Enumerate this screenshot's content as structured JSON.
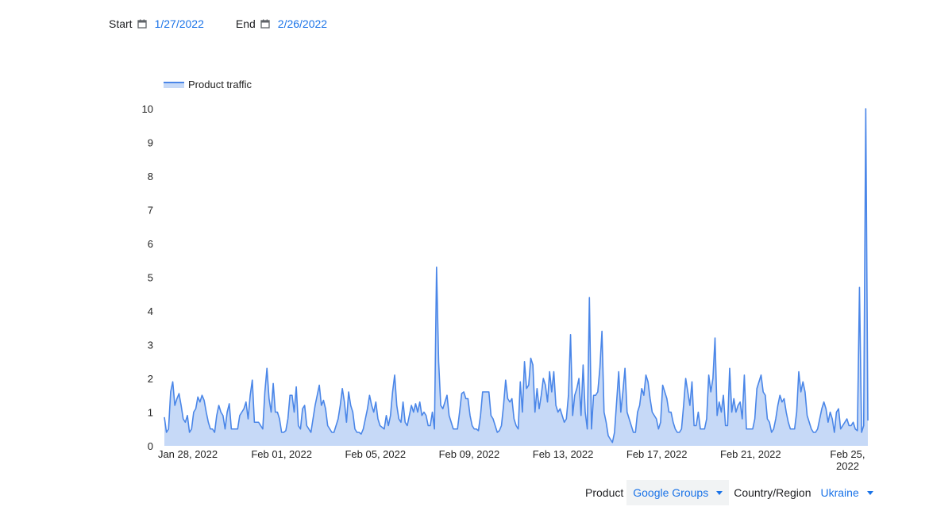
{
  "filters": {
    "start_label": "Start",
    "start_date": "1/27/2022",
    "end_label": "End",
    "end_date": "2/26/2022",
    "calendar_icon": "calendar-icon"
  },
  "controls": {
    "product_label": "Product",
    "product_value": "Google Groups",
    "country_label": "Country/Region",
    "country_value": "Ukraine",
    "dropdown_icon": "triangle-down-icon"
  },
  "colors": {
    "line": "#4a86e8",
    "fill": "#c6d9f7",
    "accent": "#1a73e8"
  },
  "chart_data": {
    "type": "area",
    "legend": "top-left",
    "series": [
      {
        "name": "Product traffic",
        "values": [
          0.85,
          0.4,
          0.5,
          1.6,
          1.9,
          1.2,
          1.4,
          1.55,
          1.2,
          0.8,
          0.7,
          0.9,
          0.4,
          0.5,
          1.0,
          1.1,
          1.45,
          1.3,
          1.5,
          1.35,
          1.0,
          0.7,
          0.5,
          0.5,
          0.4,
          0.9,
          1.2,
          1.0,
          0.9,
          0.5,
          1.0,
          1.25,
          0.5,
          0.5,
          0.5,
          0.5,
          0.9,
          1.0,
          1.1,
          1.3,
          0.8,
          1.5,
          1.95,
          0.7,
          0.7,
          0.7,
          0.6,
          0.5,
          1.6,
          2.3,
          1.4,
          1.0,
          1.85,
          1.0,
          1.0,
          0.8,
          0.4,
          0.4,
          0.45,
          0.8,
          1.5,
          1.5,
          1.0,
          1.75,
          0.6,
          0.5,
          1.1,
          1.2,
          0.6,
          0.5,
          0.4,
          0.8,
          1.2,
          1.5,
          1.8,
          1.2,
          1.35,
          1.1,
          0.6,
          0.5,
          0.4,
          0.4,
          0.6,
          0.8,
          1.2,
          1.7,
          1.3,
          0.7,
          1.6,
          1.2,
          1.0,
          0.5,
          0.4,
          0.4,
          0.35,
          0.5,
          0.8,
          1.1,
          1.5,
          1.2,
          1.0,
          1.3,
          0.8,
          0.6,
          0.55,
          0.5,
          0.9,
          0.6,
          0.9,
          1.6,
          2.1,
          1.2,
          0.8,
          0.7,
          1.3,
          0.7,
          0.6,
          0.9,
          1.2,
          1.0,
          1.25,
          1.0,
          1.3,
          0.9,
          1.0,
          0.9,
          0.6,
          0.6,
          1.0,
          0.5,
          5.3,
          2.5,
          1.2,
          1.1,
          1.3,
          1.5,
          0.9,
          0.7,
          0.5,
          0.5,
          0.5,
          1.0,
          1.55,
          1.6,
          1.4,
          1.4,
          0.9,
          0.6,
          0.5,
          0.5,
          0.45,
          0.9,
          1.6,
          1.6,
          1.6,
          1.6,
          0.9,
          0.8,
          0.6,
          0.4,
          0.45,
          0.6,
          1.2,
          1.95,
          1.4,
          1.3,
          1.4,
          0.8,
          0.6,
          0.5,
          1.9,
          1.0,
          2.5,
          1.7,
          1.8,
          2.6,
          2.4,
          1.0,
          1.7,
          1.1,
          1.5,
          2.0,
          1.8,
          1.3,
          2.2,
          1.6,
          2.2,
          1.2,
          1.0,
          1.1,
          0.9,
          0.7,
          0.8,
          1.5,
          3.3,
          0.9,
          1.5,
          1.7,
          2.0,
          0.9,
          2.4,
          1.0,
          0.5,
          4.4,
          0.5,
          1.5,
          1.5,
          1.6,
          2.3,
          3.4,
          1.0,
          0.7,
          0.3,
          0.2,
          0.1,
          0.4,
          1.3,
          2.2,
          1.0,
          1.6,
          2.3,
          1.0,
          0.8,
          0.6,
          0.4,
          0.4,
          1.0,
          1.2,
          1.7,
          1.5,
          2.1,
          1.9,
          1.4,
          1.0,
          0.9,
          0.8,
          0.5,
          0.7,
          1.8,
          1.6,
          1.4,
          1.0,
          1.0,
          0.7,
          0.5,
          0.4,
          0.4,
          0.5,
          1.2,
          2.0,
          1.6,
          1.2,
          1.9,
          0.6,
          0.6,
          1.0,
          0.5,
          0.5,
          0.5,
          0.8,
          2.1,
          1.6,
          2.0,
          3.2,
          0.9,
          1.3,
          1.0,
          1.5,
          0.6,
          0.6,
          2.3,
          1.0,
          1.4,
          1.0,
          1.2,
          1.3,
          0.8,
          2.1,
          0.5,
          0.5,
          0.5,
          0.5,
          0.8,
          1.7,
          1.9,
          2.1,
          1.6,
          1.5,
          0.8,
          0.7,
          0.4,
          0.5,
          0.8,
          1.2,
          1.5,
          1.3,
          1.4,
          1.0,
          0.7,
          0.5,
          0.5,
          0.5,
          1.0,
          2.2,
          1.6,
          1.9,
          1.6,
          0.9,
          0.7,
          0.5,
          0.4,
          0.4,
          0.5,
          0.8,
          1.1,
          1.3,
          1.1,
          0.7,
          1.0,
          0.8,
          0.4,
          1.0,
          1.1,
          0.5,
          0.6,
          0.7,
          0.8,
          0.6,
          0.6,
          0.7,
          0.5,
          0.45,
          4.7,
          0.4,
          0.6,
          10.0,
          0.75
        ]
      }
    ],
    "x_range": [
      "2022-01-27",
      "2022-02-26"
    ],
    "x_tick_labels": [
      "Jan 28, 2022",
      "Feb 01, 2022",
      "Feb 05, 2022",
      "Feb 09, 2022",
      "Feb 13, 2022",
      "Feb 17, 2022",
      "Feb 21, 2022",
      "Feb 25,",
      "2022"
    ],
    "x_tick_dates": [
      "2022-01-28",
      "2022-02-01",
      "2022-02-05",
      "2022-02-09",
      "2022-02-13",
      "2022-02-17",
      "2022-02-21",
      "2022-02-25"
    ],
    "y_ticks": [
      "0",
      "1",
      "2",
      "3",
      "4",
      "5",
      "6",
      "7",
      "8",
      "9",
      "10"
    ],
    "ylim": [
      0,
      10
    ],
    "grid": false
  }
}
